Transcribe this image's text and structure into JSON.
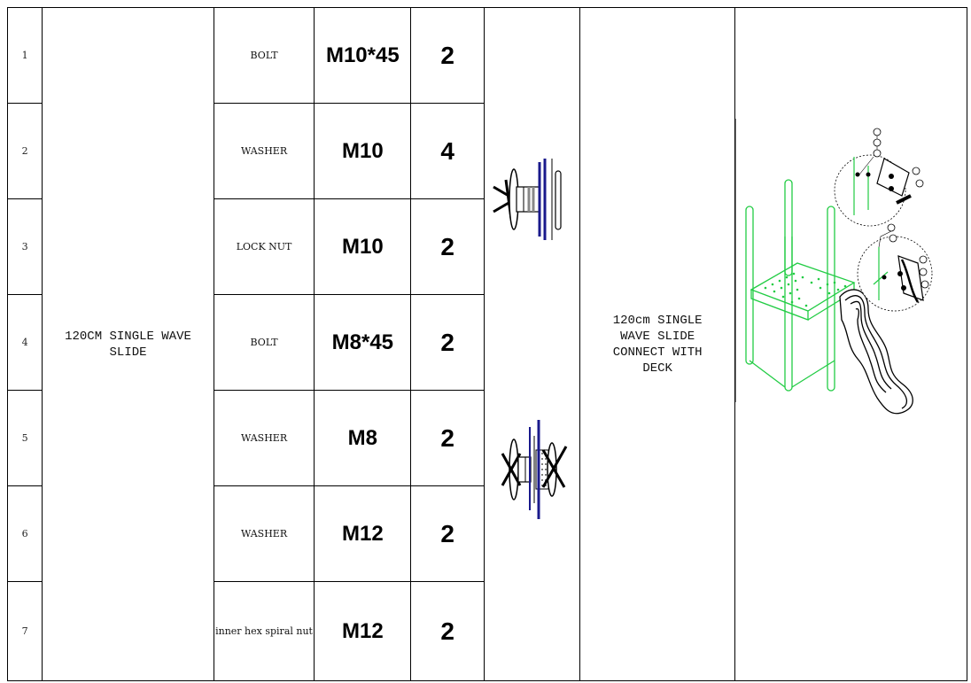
{
  "assembly": {
    "item_name": "120CM SINGLE WAVE SLIDE",
    "description": "120cm SINGLE WAVE SLIDE CONNECT WITH DECK",
    "colors": {
      "hardware_blue": "#1a1a8c",
      "frame_green": "#22cc44",
      "line": "#000000"
    },
    "icons": [
      "bolt-washer-nut-assembly-icon",
      "bolt-washer-nut-assembly-icon",
      "slide-deck-drawing"
    ]
  },
  "rows": [
    {
      "no": "1",
      "part": "BOLT",
      "spec": "M10*45",
      "qty": "2"
    },
    {
      "no": "2",
      "part": "WASHER",
      "spec": "M10",
      "qty": "4"
    },
    {
      "no": "3",
      "part": "LOCK NUT",
      "spec": "M10",
      "qty": "2"
    },
    {
      "no": "4",
      "part": "BOLT",
      "spec": "M8*45",
      "qty": "2"
    },
    {
      "no": "5",
      "part": "WASHER",
      "spec": "M8",
      "qty": "2"
    },
    {
      "no": "6",
      "part": "WASHER",
      "spec": "M12",
      "qty": "2"
    },
    {
      "no": "7",
      "part": "inner hex spiral nut",
      "spec": "M12",
      "qty": "2"
    }
  ]
}
